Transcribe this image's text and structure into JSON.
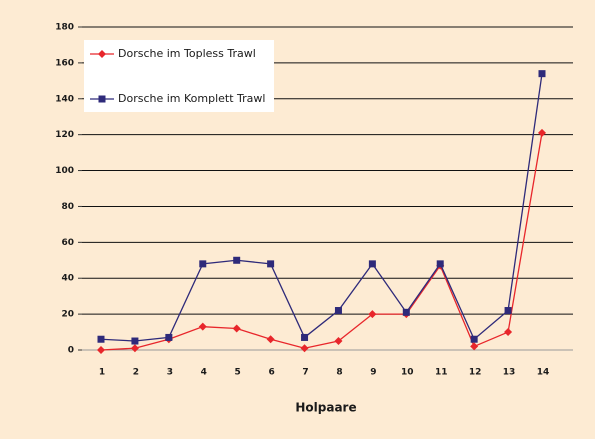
{
  "chart_data": {
    "type": "line",
    "x_label": "Holpaare",
    "categories": [
      "1",
      "2",
      "3",
      "4",
      "5",
      "6",
      "7",
      "8",
      "9",
      "10",
      "11",
      "12",
      "13",
      "14"
    ],
    "series": [
      {
        "name": "Dorsche im Topless Trawl",
        "color": "#e8262b",
        "marker": "diamond",
        "values": [
          0,
          1,
          6,
          13,
          12,
          6,
          1,
          5,
          20,
          20,
          47,
          2,
          10,
          121
        ]
      },
      {
        "name": "Dorsche im Komplett Trawl",
        "color": "#2e2a7a",
        "marker": "square",
        "values": [
          6,
          5,
          7,
          48,
          50,
          48,
          7,
          22,
          48,
          21,
          48,
          6,
          22,
          154
        ]
      }
    ],
    "ylim": [
      0,
      180
    ],
    "yticks": [
      0,
      20,
      40,
      60,
      80,
      100,
      120,
      140,
      160,
      180
    ],
    "grid": true,
    "legend": "upper left"
  }
}
